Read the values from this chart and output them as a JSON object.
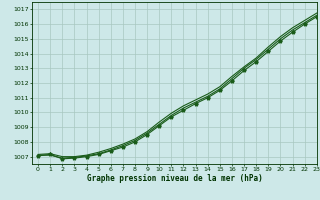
{
  "title": "Graphe pression niveau de la mer (hPa)",
  "bg_color": "#cde8e8",
  "grid_color": "#a8c8c0",
  "line_color": "#1a5c1a",
  "marker_color": "#1a5c1a",
  "text_color": "#003300",
  "xlim": [
    -0.5,
    23
  ],
  "ylim": [
    1006.5,
    1017.5
  ],
  "yticks": [
    1007,
    1008,
    1009,
    1010,
    1011,
    1012,
    1013,
    1014,
    1015,
    1016,
    1017
  ],
  "xticks": [
    0,
    1,
    2,
    3,
    4,
    5,
    6,
    7,
    8,
    9,
    10,
    11,
    12,
    13,
    14,
    15,
    16,
    17,
    18,
    19,
    20,
    21,
    22,
    23
  ],
  "line1_x": [
    0,
    1,
    2,
    3,
    4,
    5,
    6,
    7,
    8,
    9,
    10,
    11,
    12,
    13,
    14,
    15,
    16,
    17,
    18,
    19,
    20,
    21,
    22,
    23
  ],
  "line1_y": [
    1007.1,
    1007.1,
    1006.9,
    1006.95,
    1007.05,
    1007.2,
    1007.45,
    1007.75,
    1008.1,
    1008.6,
    1009.2,
    1009.8,
    1010.3,
    1010.7,
    1011.1,
    1011.6,
    1012.3,
    1013.0,
    1013.6,
    1014.3,
    1015.0,
    1015.6,
    1016.1,
    1016.6
  ],
  "line2_x": [
    0,
    1,
    2,
    3,
    4,
    5,
    6,
    7,
    8,
    9,
    10,
    11,
    12,
    13,
    14,
    15,
    16,
    17,
    18,
    19,
    20,
    21,
    22,
    23
  ],
  "line2_y": [
    1007.15,
    1007.2,
    1007.0,
    1007.0,
    1007.1,
    1007.3,
    1007.55,
    1007.85,
    1008.2,
    1008.7,
    1009.35,
    1009.95,
    1010.45,
    1010.85,
    1011.25,
    1011.75,
    1012.45,
    1013.1,
    1013.7,
    1014.45,
    1015.15,
    1015.75,
    1016.25,
    1016.75
  ],
  "line3_x": [
    0,
    1,
    2,
    3,
    4,
    5,
    6,
    7,
    8,
    9,
    10,
    11,
    12,
    13,
    14,
    15,
    16,
    17,
    18,
    19,
    20,
    21,
    22,
    23
  ],
  "line3_y": [
    1007.05,
    1007.15,
    1006.85,
    1006.9,
    1007.0,
    1007.15,
    1007.4,
    1007.65,
    1008.0,
    1008.5,
    1009.1,
    1009.7,
    1010.15,
    1010.6,
    1011.0,
    1011.5,
    1012.15,
    1012.85,
    1013.45,
    1014.15,
    1014.85,
    1015.45,
    1016.0,
    1016.5
  ]
}
